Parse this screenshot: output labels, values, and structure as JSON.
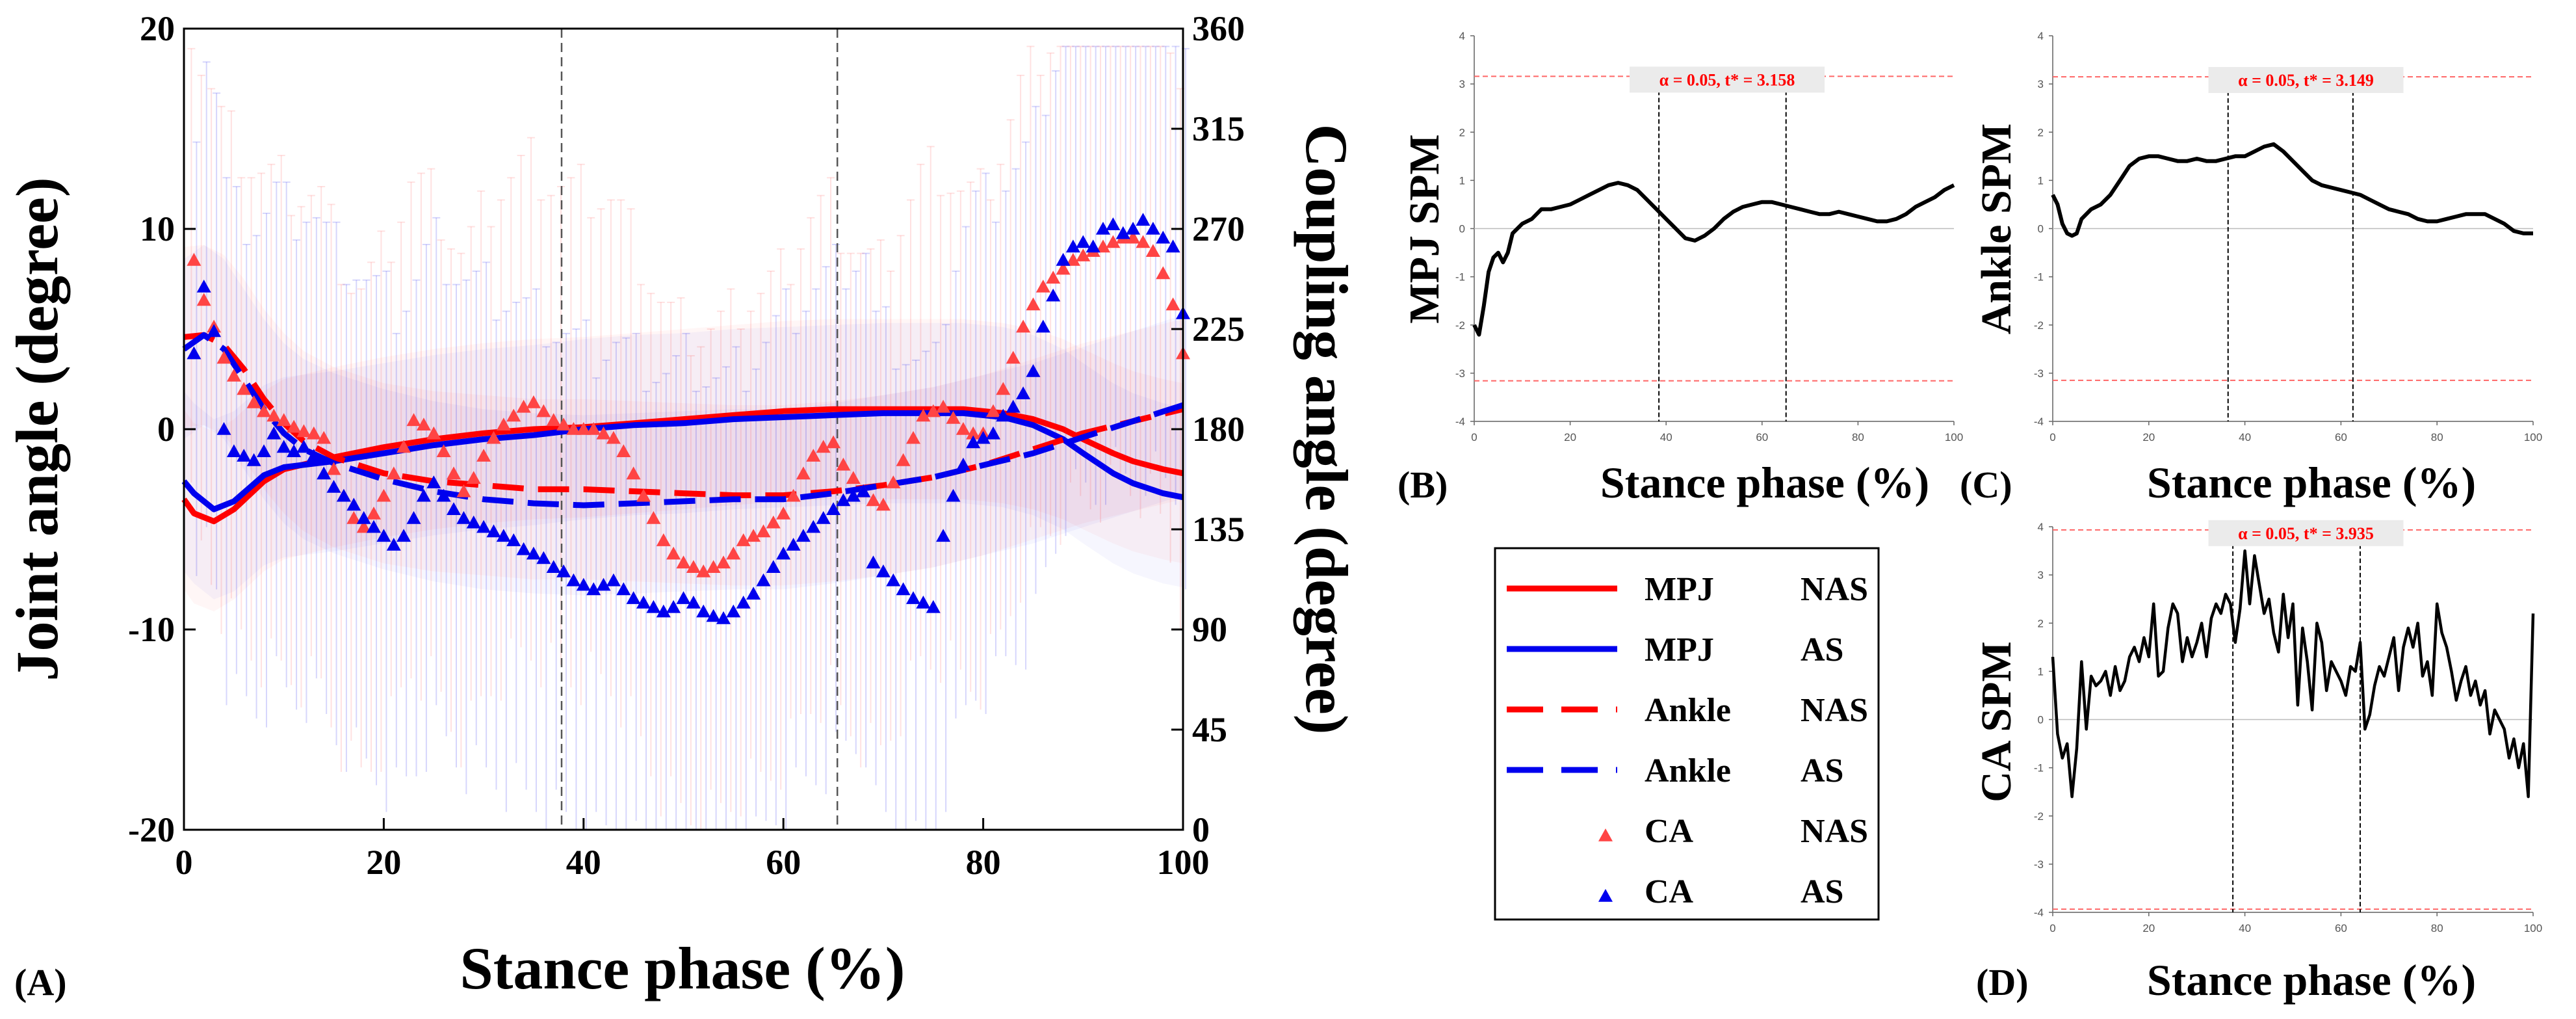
{
  "chart_data": [
    {
      "panel": "(A)",
      "type": "line",
      "xlabel": "Stance phase (%)",
      "ylabel": "Joint angle (degree)",
      "y2label": "Coupling angle (degree)",
      "xlim": [
        0,
        100
      ],
      "ylim": [
        -20,
        20
      ],
      "y2lim": [
        0,
        360
      ],
      "xticks": [
        "0",
        "20",
        "40",
        "60",
        "80",
        "100"
      ],
      "yticks": [
        "-20",
        "-10",
        "0",
        "10",
        "20"
      ],
      "y2ticks": [
        "0",
        "45",
        "90",
        "135",
        "180",
        "225",
        "270",
        "315",
        "360"
      ],
      "vlines": [
        37.8,
        65.4
      ],
      "colors": {
        "NAS": "#ff0000",
        "AS": "#0000ee"
      },
      "series": [
        {
          "name": "MPJ NAS",
          "style": "solid",
          "color": "#ff0000",
          "x": [
            0,
            1,
            3,
            5,
            8,
            10,
            15,
            20,
            25,
            30,
            35,
            40,
            45,
            50,
            55,
            60,
            65,
            70,
            75,
            78,
            82,
            85,
            88,
            90,
            93,
            95,
            98,
            100
          ],
          "y": [
            -3.5,
            -4.2,
            -4.6,
            -4.0,
            -2.6,
            -2.0,
            -1.4,
            -0.9,
            -0.5,
            -0.2,
            0.0,
            0.1,
            0.3,
            0.5,
            0.7,
            0.9,
            1.0,
            1.0,
            1.0,
            1.0,
            0.8,
            0.5,
            0.0,
            -0.5,
            -1.2,
            -1.6,
            -2.0,
            -2.2
          ]
        },
        {
          "name": "MPJ AS",
          "style": "solid",
          "color": "#0000ee",
          "x": [
            0,
            1,
            3,
            5,
            8,
            10,
            15,
            20,
            25,
            30,
            35,
            40,
            45,
            50,
            55,
            60,
            65,
            70,
            75,
            78,
            82,
            85,
            88,
            90,
            93,
            95,
            98,
            100
          ],
          "y": [
            -2.6,
            -3.2,
            -4.0,
            -3.6,
            -2.3,
            -1.9,
            -1.6,
            -1.2,
            -0.8,
            -0.5,
            -0.3,
            0.0,
            0.2,
            0.3,
            0.5,
            0.6,
            0.7,
            0.8,
            0.8,
            0.8,
            0.6,
            0.2,
            -0.5,
            -1.2,
            -2.2,
            -2.7,
            -3.2,
            -3.4
          ]
        },
        {
          "name": "Ankle NAS",
          "style": "dashed",
          "color": "#ff0000",
          "x": [
            0,
            2,
            4,
            6,
            8,
            10,
            12,
            15,
            20,
            25,
            30,
            35,
            40,
            45,
            50,
            55,
            60,
            65,
            70,
            75,
            80,
            85,
            90,
            95,
            100
          ],
          "y": [
            4.6,
            4.7,
            4.2,
            3.0,
            1.5,
            0.3,
            -0.6,
            -1.4,
            -2.2,
            -2.6,
            -2.8,
            -3.0,
            -3.0,
            -3.1,
            -3.2,
            -3.3,
            -3.3,
            -3.1,
            -2.8,
            -2.4,
            -1.8,
            -1.0,
            -0.2,
            0.4,
            1.0
          ]
        },
        {
          "name": "Ankle AS",
          "style": "dashed",
          "color": "#0000ee",
          "x": [
            0,
            2,
            4,
            6,
            8,
            10,
            12,
            15,
            20,
            25,
            30,
            35,
            40,
            45,
            50,
            55,
            60,
            65,
            70,
            75,
            80,
            85,
            90,
            95,
            100
          ],
          "y": [
            4.0,
            4.7,
            4.0,
            2.5,
            1.0,
            -0.2,
            -1.0,
            -1.7,
            -2.5,
            -3.1,
            -3.5,
            -3.7,
            -3.8,
            -3.7,
            -3.6,
            -3.5,
            -3.5,
            -3.2,
            -2.8,
            -2.4,
            -1.8,
            -1.2,
            -0.4,
            0.4,
            1.2
          ]
        },
        {
          "name": "CA NAS",
          "style": "marker",
          "color": "#ff4444",
          "axis": "y2",
          "x": [
            1,
            2,
            3,
            4,
            5,
            6,
            7,
            8,
            9,
            10,
            11,
            12,
            13,
            14,
            15,
            16,
            17,
            18,
            19,
            20,
            21,
            22,
            23,
            24,
            25,
            26,
            27,
            28,
            29,
            30,
            31,
            32,
            33,
            34,
            35,
            36,
            37,
            38,
            39,
            40,
            41,
            42,
            43,
            44,
            45,
            46,
            47,
            48,
            49,
            50,
            51,
            52,
            53,
            54,
            55,
            56,
            57,
            58,
            59,
            60,
            61,
            62,
            63,
            64,
            65,
            66,
            67,
            68,
            69,
            70,
            71,
            72,
            73,
            74,
            75,
            76,
            77,
            78,
            79,
            80,
            81,
            82,
            83,
            84,
            85,
            86,
            87,
            88,
            89,
            90,
            91,
            92,
            93,
            94,
            95,
            96,
            97,
            98,
            99,
            100
          ],
          "y": [
            256,
            238,
            226,
            212,
            204,
            198,
            192,
            188,
            186,
            184,
            181,
            179,
            178,
            176,
            162,
            150,
            140,
            136,
            142,
            150,
            160,
            172,
            184,
            182,
            178,
            170,
            160,
            152,
            158,
            168,
            176,
            182,
            186,
            190,
            192,
            188,
            184,
            182,
            180,
            180,
            180,
            178,
            176,
            170,
            160,
            150,
            140,
            130,
            124,
            120,
            118,
            116,
            118,
            120,
            124,
            130,
            132,
            134,
            138,
            142,
            150,
            160,
            168,
            172,
            174,
            164,
            158,
            152,
            148,
            146,
            156,
            166,
            176,
            186,
            188,
            190,
            185,
            180,
            178,
            178,
            188,
            198,
            212,
            226,
            236,
            244,
            248,
            252,
            256,
            258,
            260,
            262,
            264,
            266,
            266,
            264,
            260,
            250,
            236,
            214
          ]
        },
        {
          "name": "CA AS",
          "style": "marker",
          "color": "#0000ee",
          "axis": "y2",
          "x": [
            1,
            2,
            3,
            4,
            5,
            6,
            7,
            8,
            9,
            10,
            11,
            12,
            13,
            14,
            15,
            16,
            17,
            18,
            19,
            20,
            21,
            22,
            23,
            24,
            25,
            26,
            27,
            28,
            29,
            30,
            31,
            32,
            33,
            34,
            35,
            36,
            37,
            38,
            39,
            40,
            41,
            42,
            43,
            44,
            45,
            46,
            47,
            48,
            49,
            50,
            51,
            52,
            53,
            54,
            55,
            56,
            57,
            58,
            59,
            60,
            61,
            62,
            63,
            64,
            65,
            66,
            67,
            68,
            69,
            70,
            71,
            72,
            73,
            74,
            75,
            76,
            77,
            78,
            79,
            80,
            81,
            82,
            83,
            84,
            85,
            86,
            87,
            88,
            89,
            90,
            91,
            92,
            93,
            94,
            95,
            96,
            97,
            98,
            99,
            100
          ],
          "y": [
            214,
            244,
            224,
            180,
            170,
            168,
            166,
            170,
            178,
            172,
            170,
            172,
            168,
            160,
            154,
            150,
            146,
            140,
            136,
            132,
            128,
            132,
            140,
            150,
            156,
            150,
            144,
            140,
            138,
            136,
            134,
            132,
            130,
            126,
            124,
            122,
            118,
            116,
            112,
            110,
            108,
            110,
            112,
            108,
            104,
            102,
            100,
            98,
            100,
            104,
            102,
            98,
            96,
            95,
            98,
            102,
            106,
            112,
            118,
            124,
            128,
            132,
            136,
            140,
            144,
            148,
            150,
            152,
            120,
            116,
            112,
            108,
            104,
            102,
            100,
            132,
            150,
            164,
            174,
            176,
            178,
            186,
            190,
            196,
            206,
            226,
            240,
            256,
            262,
            264,
            262,
            270,
            272,
            268,
            270,
            274,
            270,
            266,
            262,
            232
          ]
        }
      ],
      "legend": [
        {
          "joint": "MPJ",
          "group": "NAS"
        },
        {
          "joint": "MPJ",
          "group": "AS"
        },
        {
          "joint": "Ankle",
          "group": "NAS"
        },
        {
          "joint": "Ankle",
          "group": "AS"
        },
        {
          "joint": "CA",
          "group": "NAS"
        },
        {
          "joint": "CA",
          "group": "AS"
        }
      ]
    },
    {
      "panel": "(B)",
      "type": "line",
      "xlabel": "Stance phase (%)",
      "ylabel": "MPJ SPM",
      "xlim": [
        0,
        100
      ],
      "ylim": [
        -4,
        4
      ],
      "xticks": [
        "0",
        "20",
        "40",
        "60",
        "80",
        "100"
      ],
      "yticks": [
        "-4",
        "-3",
        "-2",
        "-1",
        "0",
        "1",
        "2",
        "3",
        "4"
      ],
      "threshold": 3.158,
      "threshold_label": "α = 0.05, t* = 3.158",
      "vlines": [
        38.5,
        65
      ],
      "x": [
        0,
        1,
        2,
        3,
        4,
        5,
        6,
        7,
        8,
        9,
        10,
        12,
        14,
        16,
        18,
        20,
        22,
        24,
        26,
        28,
        30,
        32,
        34,
        36,
        38,
        40,
        42,
        44,
        46,
        48,
        50,
        52,
        54,
        56,
        58,
        60,
        62,
        64,
        66,
        68,
        70,
        72,
        74,
        76,
        78,
        80,
        82,
        84,
        86,
        88,
        90,
        92,
        94,
        96,
        98,
        100
      ],
      "y": [
        -2.0,
        -2.2,
        -1.6,
        -0.9,
        -0.6,
        -0.5,
        -0.7,
        -0.5,
        -0.1,
        0.0,
        0.1,
        0.2,
        0.4,
        0.4,
        0.45,
        0.5,
        0.6,
        0.7,
        0.8,
        0.9,
        0.95,
        0.9,
        0.8,
        0.6,
        0.4,
        0.2,
        0.0,
        -0.2,
        -0.25,
        -0.15,
        0.0,
        0.2,
        0.35,
        0.45,
        0.5,
        0.55,
        0.55,
        0.5,
        0.45,
        0.4,
        0.35,
        0.3,
        0.3,
        0.35,
        0.3,
        0.25,
        0.2,
        0.15,
        0.15,
        0.2,
        0.3,
        0.45,
        0.55,
        0.65,
        0.8,
        0.9
      ]
    },
    {
      "panel": "(C)",
      "type": "line",
      "xlabel": "Stance phase (%)",
      "ylabel": "Ankle SPM",
      "xlim": [
        0,
        100
      ],
      "ylim": [
        -4,
        4
      ],
      "xticks": [
        "0",
        "20",
        "40",
        "60",
        "80",
        "100"
      ],
      "yticks": [
        "-4",
        "-3",
        "-2",
        "-1",
        "0",
        "1",
        "2",
        "3",
        "4"
      ],
      "threshold": 3.149,
      "threshold_label": "α = 0.05, t* = 3.149",
      "vlines": [
        36.5,
        62.5
      ],
      "x": [
        0,
        1,
        2,
        3,
        4,
        5,
        6,
        8,
        10,
        12,
        14,
        16,
        18,
        20,
        22,
        24,
        26,
        28,
        30,
        32,
        34,
        36,
        38,
        40,
        42,
        44,
        46,
        48,
        50,
        52,
        54,
        56,
        58,
        60,
        62,
        64,
        66,
        68,
        70,
        72,
        74,
        76,
        78,
        80,
        82,
        84,
        86,
        88,
        90,
        92,
        94,
        96,
        98,
        100
      ],
      "y": [
        0.7,
        0.5,
        0.1,
        -0.1,
        -0.15,
        -0.1,
        0.2,
        0.4,
        0.5,
        0.7,
        1.0,
        1.3,
        1.45,
        1.5,
        1.5,
        1.45,
        1.4,
        1.4,
        1.45,
        1.4,
        1.4,
        1.45,
        1.5,
        1.5,
        1.6,
        1.7,
        1.75,
        1.6,
        1.4,
        1.2,
        1.0,
        0.9,
        0.85,
        0.8,
        0.75,
        0.7,
        0.6,
        0.5,
        0.4,
        0.35,
        0.3,
        0.2,
        0.15,
        0.15,
        0.2,
        0.25,
        0.3,
        0.3,
        0.3,
        0.2,
        0.1,
        -0.05,
        -0.1,
        -0.1
      ]
    },
    {
      "panel": "(D)",
      "type": "line",
      "xlabel": "Stance phase (%)",
      "ylabel": "CA SPM",
      "xlim": [
        0,
        100
      ],
      "ylim": [
        -4,
        4
      ],
      "xticks": [
        "0",
        "20",
        "40",
        "60",
        "80",
        "100"
      ],
      "yticks": [
        "-4",
        "-3",
        "-2",
        "-1",
        "0",
        "1",
        "2",
        "3",
        "4"
      ],
      "threshold": 3.935,
      "threshold_label": "α = 0.05, t* = 3.935",
      "vlines": [
        37.5,
        64
      ],
      "x": [
        0,
        1,
        2,
        3,
        4,
        5,
        6,
        7,
        8,
        9,
        10,
        11,
        12,
        13,
        14,
        15,
        16,
        17,
        18,
        19,
        20,
        21,
        22,
        23,
        24,
        25,
        26,
        27,
        28,
        29,
        30,
        31,
        32,
        33,
        34,
        35,
        36,
        37,
        38,
        39,
        40,
        41,
        42,
        43,
        44,
        45,
        46,
        47,
        48,
        49,
        50,
        51,
        52,
        53,
        54,
        55,
        56,
        57,
        58,
        59,
        60,
        61,
        62,
        63,
        64,
        65,
        66,
        67,
        68,
        69,
        70,
        71,
        72,
        73,
        74,
        75,
        76,
        77,
        78,
        79,
        80,
        81,
        82,
        83,
        84,
        85,
        86,
        87,
        88,
        89,
        90,
        91,
        92,
        93,
        94,
        95,
        96,
        97,
        98,
        99,
        100
      ],
      "y": [
        1.3,
        -0.3,
        -0.8,
        -0.5,
        -1.6,
        -0.6,
        1.2,
        -0.2,
        0.9,
        0.7,
        0.8,
        1.0,
        0.5,
        1.1,
        0.6,
        0.8,
        1.3,
        1.5,
        1.2,
        1.7,
        1.3,
        2.4,
        0.9,
        1.0,
        1.9,
        2.4,
        2.2,
        1.2,
        1.7,
        1.3,
        1.6,
        2.0,
        1.3,
        2.1,
        2.4,
        2.2,
        2.6,
        2.4,
        1.6,
        2.3,
        3.5,
        2.4,
        3.4,
        2.8,
        2.2,
        2.5,
        1.8,
        1.4,
        2.6,
        1.7,
        2.4,
        0.3,
        1.9,
        1.2,
        0.2,
        2.0,
        1.6,
        0.6,
        1.2,
        1.0,
        0.8,
        0.5,
        1.1,
        1.0,
        1.6,
        -0.2,
        0.1,
        0.7,
        1.1,
        0.9,
        1.3,
        1.7,
        0.6,
        1.5,
        1.9,
        1.5,
        2.0,
        0.9,
        1.2,
        0.5,
        2.4,
        1.8,
        1.5,
        1.0,
        0.4,
        0.8,
        1.1,
        0.5,
        0.8,
        0.3,
        0.6,
        -0.3,
        0.2,
        0.0,
        -0.2,
        -0.8,
        -0.4,
        -1.0,
        -0.5,
        -1.6,
        2.2
      ]
    }
  ],
  "panel_labels": {
    "a": "(A)",
    "b": "(B)",
    "c": "(C)",
    "d": "(D)"
  }
}
